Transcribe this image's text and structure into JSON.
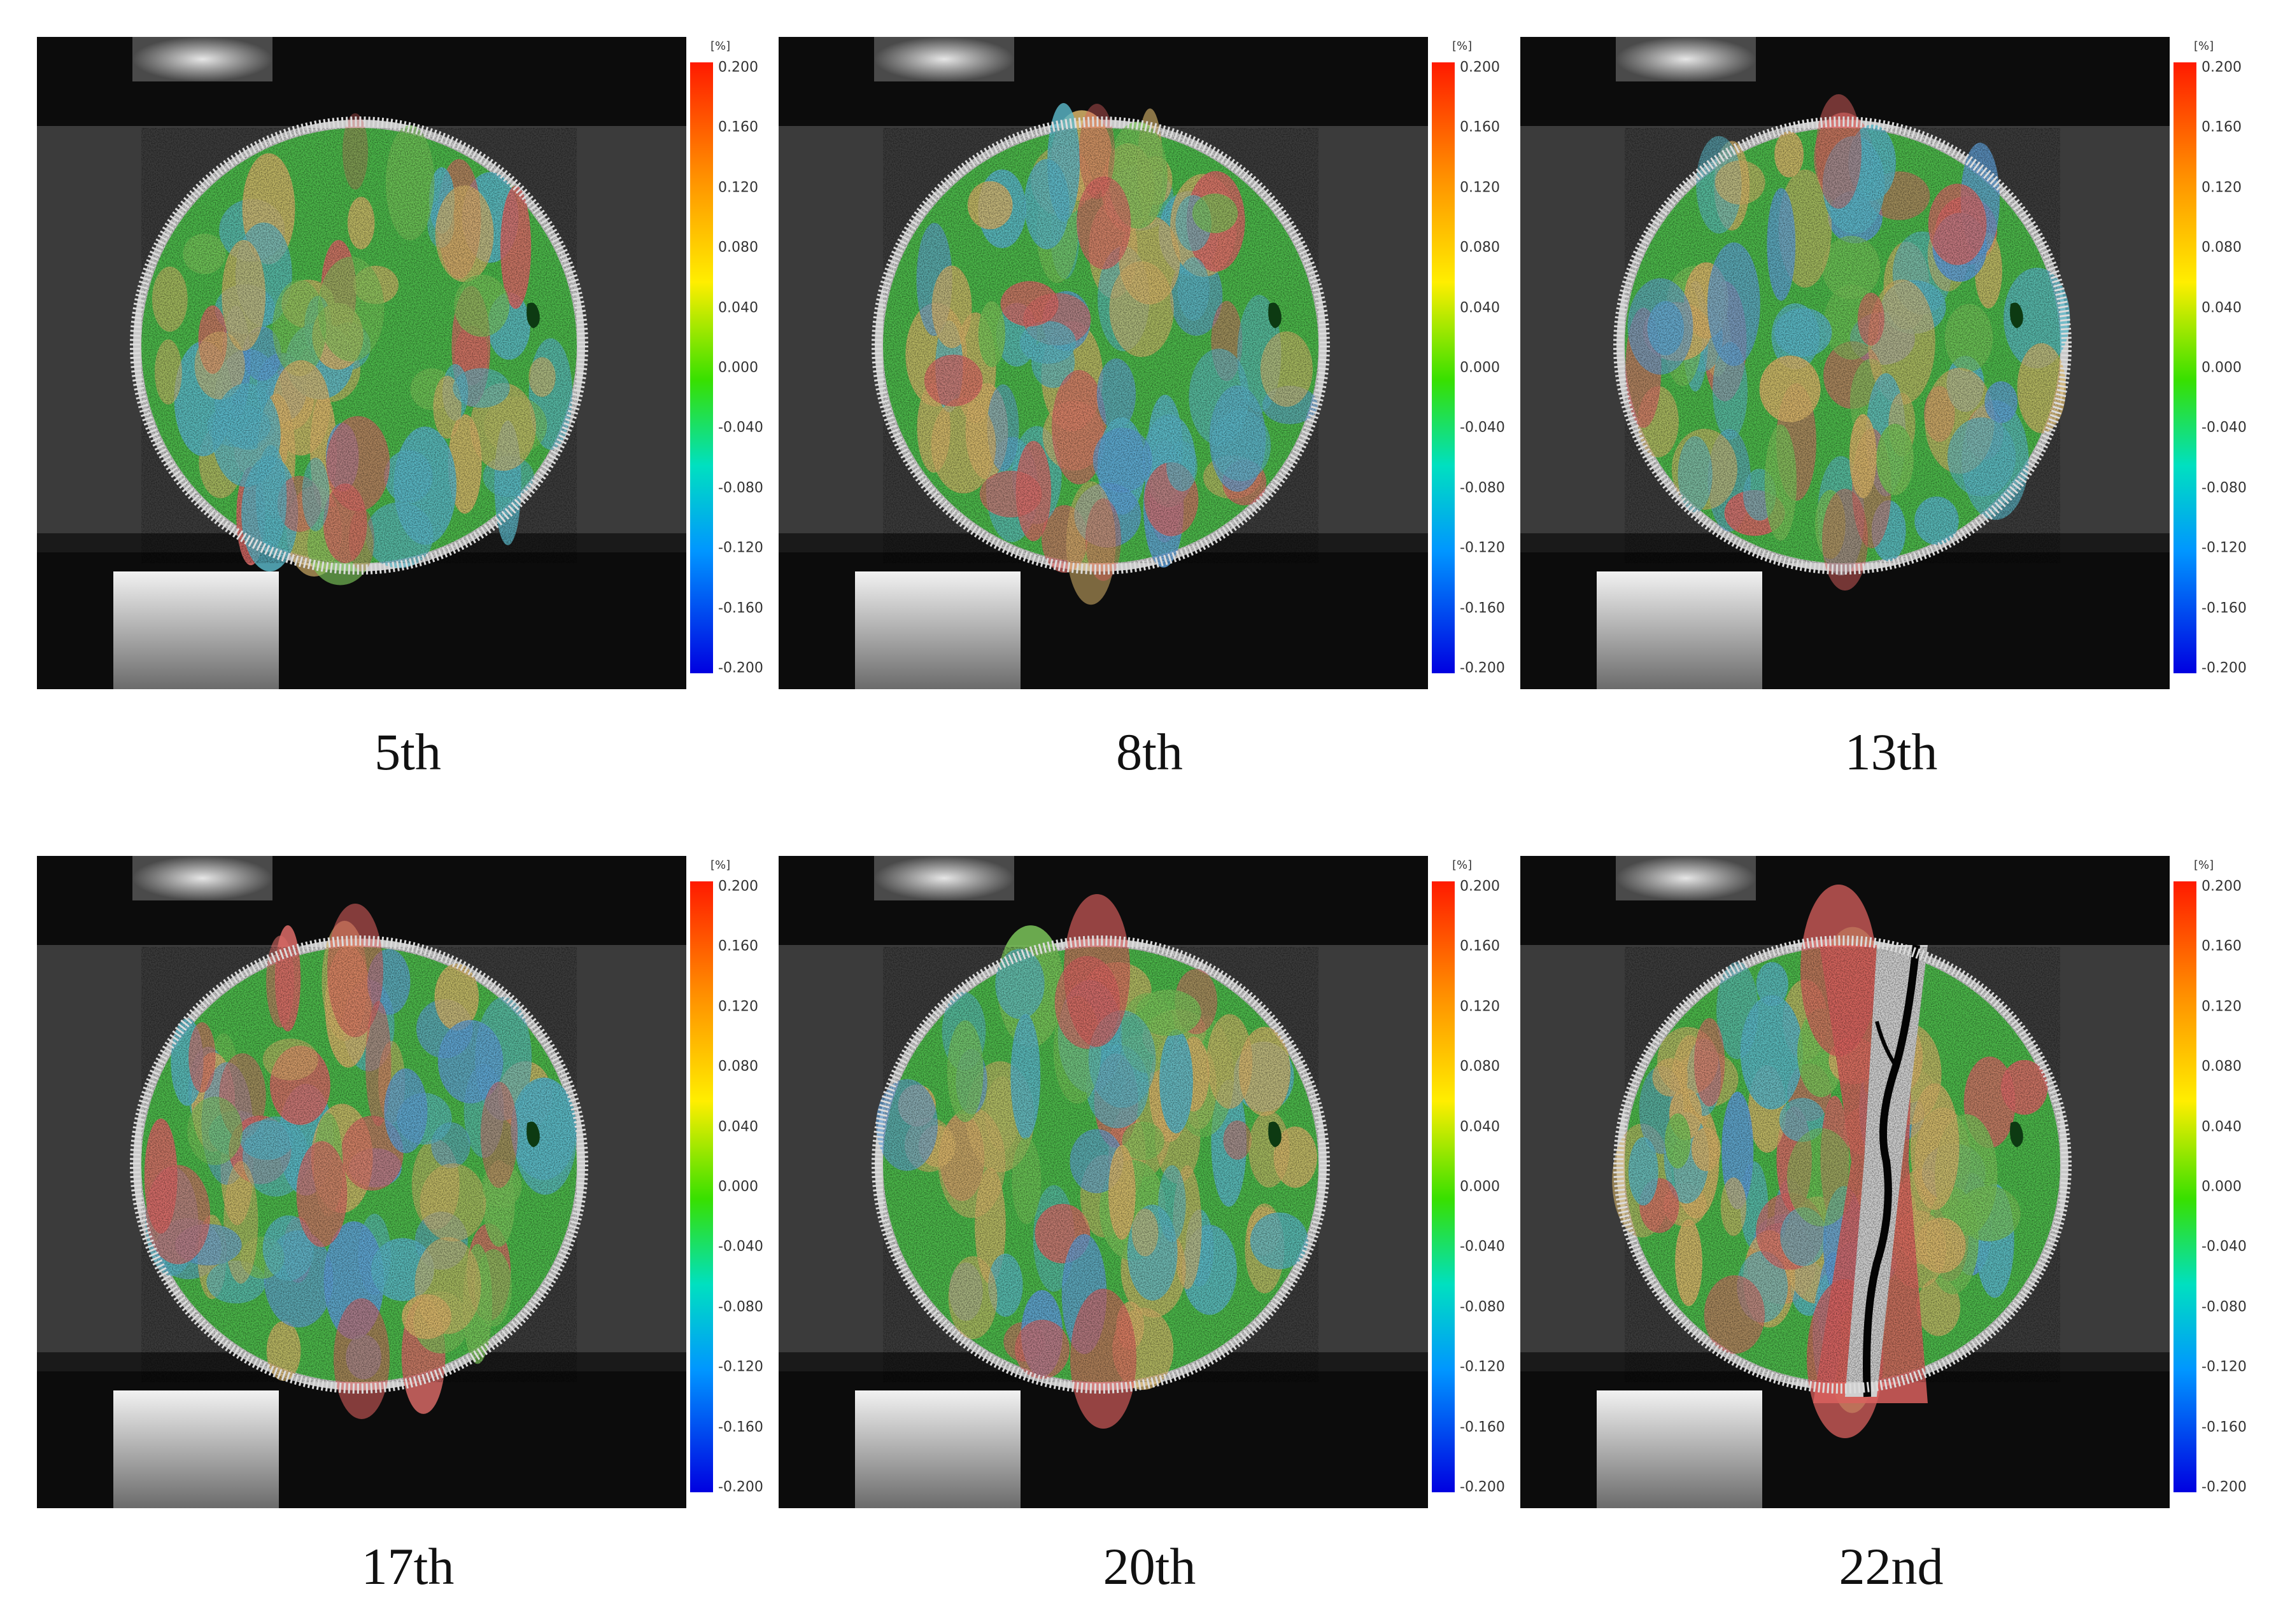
{
  "colorbar": {
    "unit": "[%]",
    "ticks": [
      "0.200",
      "0.160",
      "0.120",
      "0.080",
      "0.040",
      "0.000",
      "-0.040",
      "-0.080",
      "-0.120",
      "-0.160",
      "-0.200"
    ],
    "colors": [
      "#ff1a00",
      "#ff8c00",
      "#ffee00",
      "#38e000",
      "#00e0c0",
      "#0096ff",
      "#0000e0"
    ]
  },
  "panels": [
    {
      "caption": "5th",
      "crack": false
    },
    {
      "caption": "8th",
      "crack": false
    },
    {
      "caption": "13th",
      "crack": false
    },
    {
      "caption": "17th",
      "crack": false
    },
    {
      "caption": "20th",
      "crack": false
    },
    {
      "caption": "22nd",
      "crack": true
    }
  ]
}
